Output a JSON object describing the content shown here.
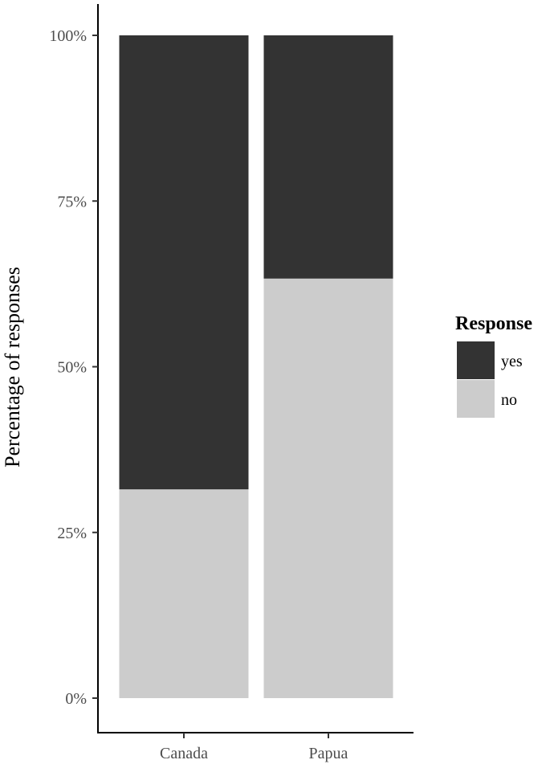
{
  "chart_data": {
    "type": "bar",
    "stacked": true,
    "title": "",
    "xlabel": "",
    "ylabel": "Percentage of responses",
    "categories": [
      "Canada",
      "Papua"
    ],
    "series": [
      {
        "name": "no",
        "color": "#cccccc",
        "values": [
          31.5,
          63.3
        ]
      },
      {
        "name": "yes",
        "color": "#333333",
        "values": [
          68.5,
          36.7
        ]
      }
    ],
    "ylim": [
      0,
      100
    ],
    "yticks": [
      "0%",
      "25%",
      "50%",
      "75%",
      "100%"
    ],
    "ytick_values": [
      0,
      25,
      50,
      75,
      100
    ],
    "grid": false,
    "legend": {
      "title": "Response",
      "position": "right",
      "entries": [
        {
          "label": "yes",
          "color": "#333333"
        },
        {
          "label": "no",
          "color": "#cccccc"
        }
      ]
    }
  }
}
